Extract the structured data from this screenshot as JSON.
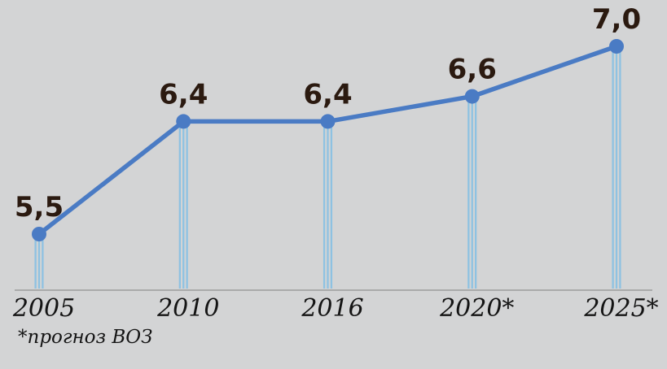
{
  "chart_data": {
    "type": "line",
    "categories": [
      "2005",
      "2010",
      "2016",
      "2020*",
      "2025*"
    ],
    "values": [
      5.5,
      6.4,
      6.4,
      6.6,
      7.0
    ],
    "value_labels": [
      "5,5",
      "6,4",
      "6,4",
      "6,6",
      "7,0"
    ],
    "title": "",
    "xlabel": "",
    "ylabel": "",
    "ylim": [
      5.0,
      7.3
    ],
    "grid": false,
    "legend": false,
    "footnote": "*прогноз ВОЗ",
    "colors": {
      "line": "#4a7bc4",
      "marker": "#4a7bc4",
      "stem": "#8ec2e2",
      "value_label": "#2b1a10",
      "axis_text": "#141414",
      "baseline": "#9b9b9b",
      "background": "#d3d4d5"
    }
  }
}
